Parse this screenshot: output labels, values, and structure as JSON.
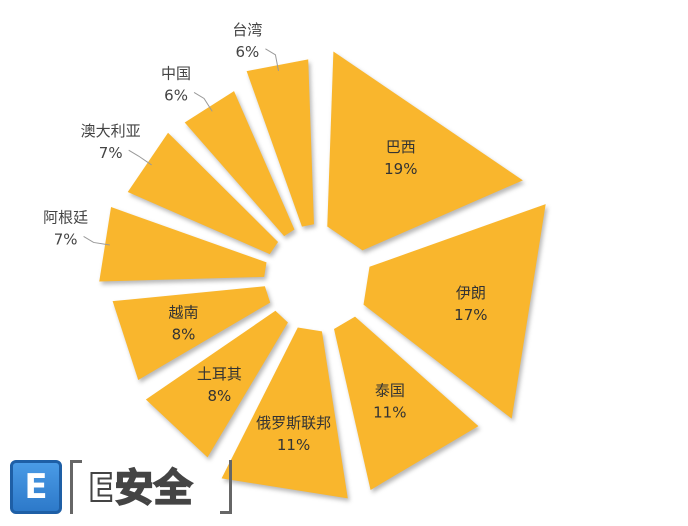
{
  "chart_data": {
    "type": "pie",
    "title": "",
    "slices": [
      {
        "label": "巴西",
        "value": 19,
        "display": "19%"
      },
      {
        "label": "伊朗",
        "value": 17,
        "display": "17%"
      },
      {
        "label": "泰国",
        "value": 11,
        "display": "11%"
      },
      {
        "label": "俄罗斯联邦",
        "value": 11,
        "display": "11%"
      },
      {
        "label": "土耳其",
        "value": 8,
        "display": "8%"
      },
      {
        "label": "越南",
        "value": 8,
        "display": "8%"
      },
      {
        "label": "阿根廷",
        "value": 7,
        "display": "7%"
      },
      {
        "label": "澳大利亚",
        "value": 7,
        "display": "7%"
      },
      {
        "label": "中国",
        "value": 6,
        "display": "6%"
      },
      {
        "label": "台湾",
        "value": 6,
        "display": "6%"
      }
    ],
    "slice_color": "#F9B62D",
    "label_position_inside": [
      "巴西",
      "伊朗",
      "泰国",
      "俄罗斯联邦",
      "土耳其",
      "越南"
    ],
    "label_position_outside": [
      "阿根廷",
      "澳大利亚",
      "中国",
      "台湾"
    ]
  },
  "watermark": {
    "badge": "E",
    "text": "E安全"
  }
}
